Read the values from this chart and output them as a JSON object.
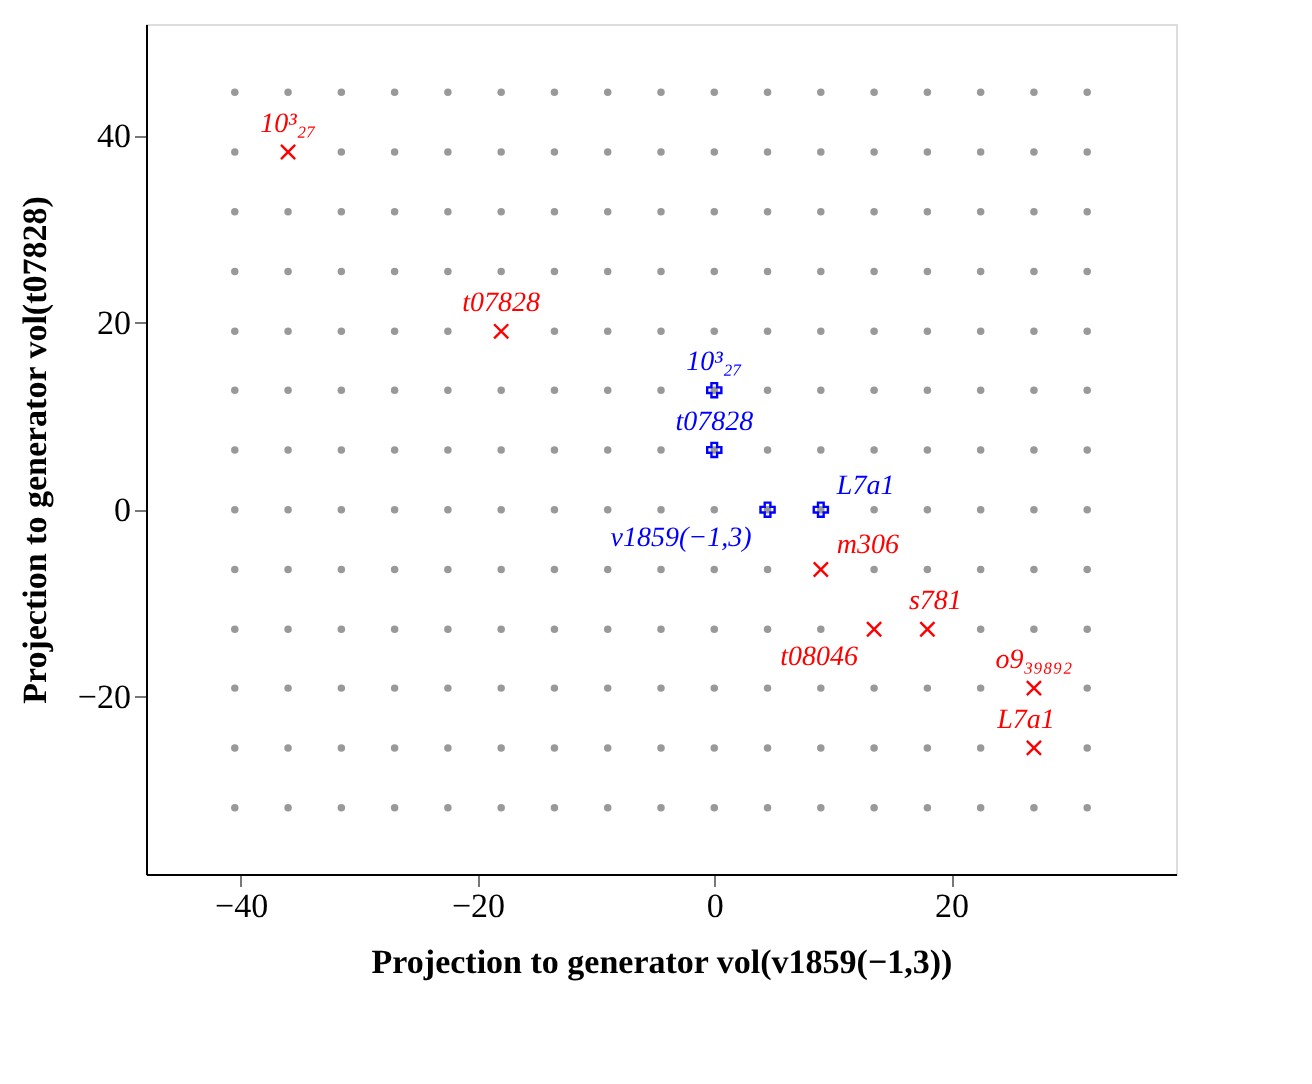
{
  "chart_data": {
    "type": "scatter",
    "xlabel": "Projection to generator vol(v1859(−1,3))",
    "ylabel": "Projection to generator vol(t07828)",
    "xlim": [
      -48,
      39
    ],
    "ylim": [
      -39,
      52
    ],
    "xticks": [
      -40,
      -20,
      0,
      20
    ],
    "yticks": [
      -20,
      0,
      20,
      40
    ],
    "x": [
      -40.5,
      -36,
      -31.5,
      -27,
      -22.5,
      -18,
      -13.5,
      -9,
      -4.5,
      0,
      4.5,
      9,
      13.5,
      18,
      22.5,
      27,
      31.5
    ],
    "series": [
      {
        "color": "#999999",
        "marker": "circle",
        "values": [
          44.7,
          44.7,
          44.7,
          44.7,
          44.7,
          44.7,
          44.7,
          44.7,
          44.7,
          44.7,
          44.7,
          44.7,
          44.7,
          44.7,
          44.7,
          44.7,
          44.7
        ]
      },
      {
        "color": "#999999",
        "marker": "circle",
        "values": [
          38.3,
          null,
          38.3,
          38.3,
          38.3,
          38.3,
          38.3,
          38.3,
          38.3,
          38.3,
          38.3,
          38.3,
          38.3,
          38.3,
          38.3,
          38.3,
          38.3
        ]
      },
      {
        "color": "#999999",
        "marker": "circle",
        "values": [
          31.9,
          31.9,
          31.9,
          31.9,
          31.9,
          31.9,
          31.9,
          31.9,
          31.9,
          31.9,
          31.9,
          31.9,
          31.9,
          31.9,
          31.9,
          31.9,
          31.9
        ]
      },
      {
        "color": "#999999",
        "marker": "circle",
        "values": [
          25.5,
          25.5,
          25.5,
          25.5,
          25.5,
          25.5,
          25.5,
          25.5,
          25.5,
          25.5,
          25.5,
          25.5,
          25.5,
          25.5,
          25.5,
          25.5,
          25.5
        ]
      },
      {
        "color": "#999999",
        "marker": "circle",
        "values": [
          19.1,
          19.1,
          19.1,
          19.1,
          19.1,
          null,
          19.1,
          19.1,
          19.1,
          19.1,
          19.1,
          19.1,
          19.1,
          19.1,
          19.1,
          19.1,
          19.1
        ]
      },
      {
        "color": "#999999",
        "marker": "circle",
        "values": [
          12.8,
          12.8,
          12.8,
          12.8,
          12.8,
          12.8,
          12.8,
          12.8,
          12.8,
          12.8,
          12.8,
          12.8,
          12.8,
          12.8,
          12.8,
          12.8,
          12.8
        ]
      },
      {
        "color": "#999999",
        "marker": "circle",
        "values": [
          6.4,
          6.4,
          6.4,
          6.4,
          6.4,
          6.4,
          6.4,
          6.4,
          6.4,
          6.4,
          6.4,
          6.4,
          6.4,
          6.4,
          6.4,
          6.4,
          6.4
        ]
      },
      {
        "color": "#999999",
        "marker": "circle",
        "values": [
          0,
          0,
          0,
          0,
          0,
          0,
          0,
          0,
          0,
          0,
          0,
          0,
          0,
          0,
          0,
          0,
          0
        ]
      },
      {
        "color": "#999999",
        "marker": "circle",
        "values": [
          -6.4,
          -6.4,
          -6.4,
          -6.4,
          -6.4,
          -6.4,
          -6.4,
          -6.4,
          -6.4,
          -6.4,
          -6.4,
          null,
          -6.4,
          -6.4,
          -6.4,
          -6.4,
          -6.4
        ]
      },
      {
        "color": "#999999",
        "marker": "circle",
        "values": [
          -12.8,
          -12.8,
          -12.8,
          -12.8,
          -12.8,
          -12.8,
          -12.8,
          -12.8,
          -12.8,
          -12.8,
          -12.8,
          -12.8,
          null,
          null,
          -12.8,
          -12.8,
          -12.8
        ]
      },
      {
        "color": "#999999",
        "marker": "circle",
        "values": [
          -19.1,
          -19.1,
          -19.1,
          -19.1,
          -19.1,
          -19.1,
          -19.1,
          -19.1,
          -19.1,
          -19.1,
          -19.1,
          -19.1,
          -19.1,
          -19.1,
          -19.1,
          null,
          -19.1
        ]
      },
      {
        "color": "#999999",
        "marker": "circle",
        "values": [
          -25.5,
          -25.5,
          -25.5,
          -25.5,
          -25.5,
          -25.5,
          -25.5,
          -25.5,
          -25.5,
          -25.5,
          -25.5,
          -25.5,
          -25.5,
          -25.5,
          -25.5,
          null,
          -25.5
        ]
      },
      {
        "color": "#999999",
        "marker": "circle",
        "values": [
          -31.9,
          -31.9,
          -31.9,
          -31.9,
          -31.9,
          -31.9,
          -31.9,
          -31.9,
          -31.9,
          -31.9,
          -31.9,
          -31.9,
          -31.9,
          -31.9,
          -31.9,
          -31.9,
          -31.9
        ]
      },
      {
        "color": "#ff0000",
        "marker": "x",
        "x": [
          -36,
          -18,
          9,
          13.5,
          18,
          27,
          27
        ],
        "values": [
          38.3,
          19.1,
          -6.4,
          -12.8,
          -12.8,
          -19.1,
          -25.5
        ]
      },
      {
        "color": "#0000ff",
        "marker": "cross",
        "x": [
          0,
          0,
          4.5,
          9
        ],
        "values": [
          12.8,
          6.4,
          0,
          0
        ]
      }
    ],
    "annotations": [
      {
        "text": "10³₂₇",
        "x": -36,
        "y": 38.3
      },
      {
        "text": "t07828",
        "x": -18,
        "y": 19.1
      },
      {
        "text": "10³₂₇",
        "x": 0,
        "y": 12.8
      },
      {
        "text": "t07828",
        "x": 0,
        "y": 6.4
      },
      {
        "text": "v1859(−1,3)",
        "x": 4.5,
        "y": 0
      },
      {
        "text": "L7a1",
        "x": 9,
        "y": 0
      },
      {
        "text": "m306",
        "x": 9,
        "y": -6.4
      },
      {
        "text": "t08046",
        "x": 13.5,
        "y": -12.8
      },
      {
        "text": "s781",
        "x": 18,
        "y": -12.8
      },
      {
        "text": "o9₃₉₈₉₂",
        "x": 27,
        "y": -19.1
      },
      {
        "text": "L7a1",
        "x": 27,
        "y": -25.5
      }
    ]
  }
}
